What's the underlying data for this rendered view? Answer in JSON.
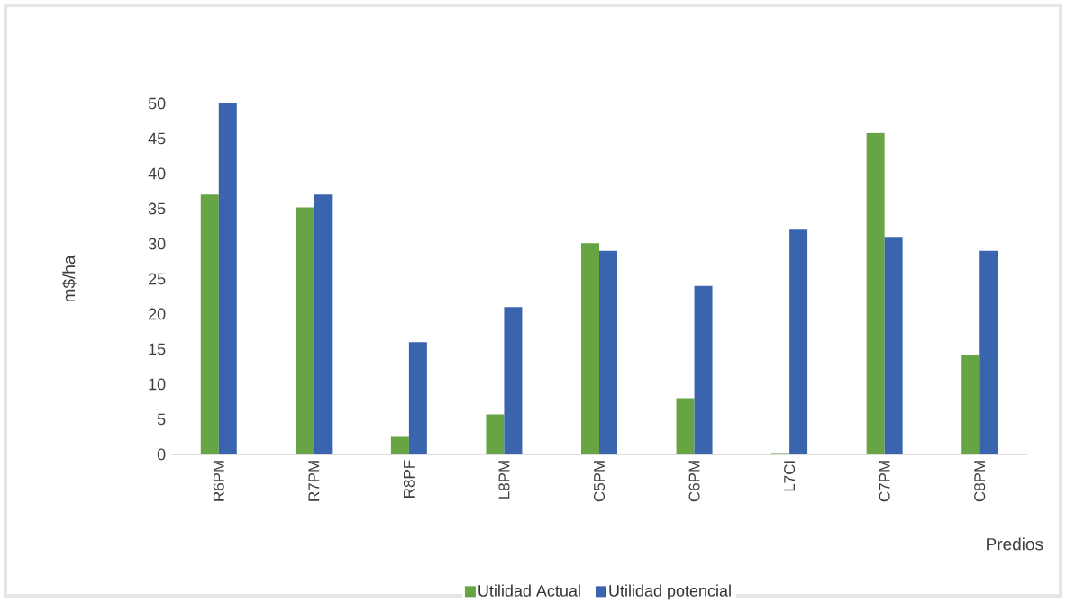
{
  "chart_data": {
    "type": "bar",
    "xlabel": "Predios",
    "ylabel": "m$/ha",
    "categories": [
      "R6PM",
      "R7PM",
      "R8PF",
      "L8PM",
      "C5PM",
      "C6PM",
      "L7CI",
      "C7PM",
      "C8PM"
    ],
    "series": [
      {
        "name": "Utilidad Actual",
        "color": "#67a544",
        "values": [
          37,
          35.2,
          2.5,
          5.7,
          30.1,
          8,
          0.2,
          45.8,
          14.2
        ]
      },
      {
        "name": "Utilidad potencial",
        "color": "#3a64ae",
        "values": [
          50,
          37,
          16,
          21,
          29,
          24,
          32,
          31,
          29
        ]
      }
    ],
    "ylim": [
      0,
      50
    ],
    "yticks": [
      0,
      5,
      10,
      15,
      20,
      25,
      30,
      35,
      40,
      45,
      50
    ],
    "grid": false,
    "legend": "bottom"
  }
}
